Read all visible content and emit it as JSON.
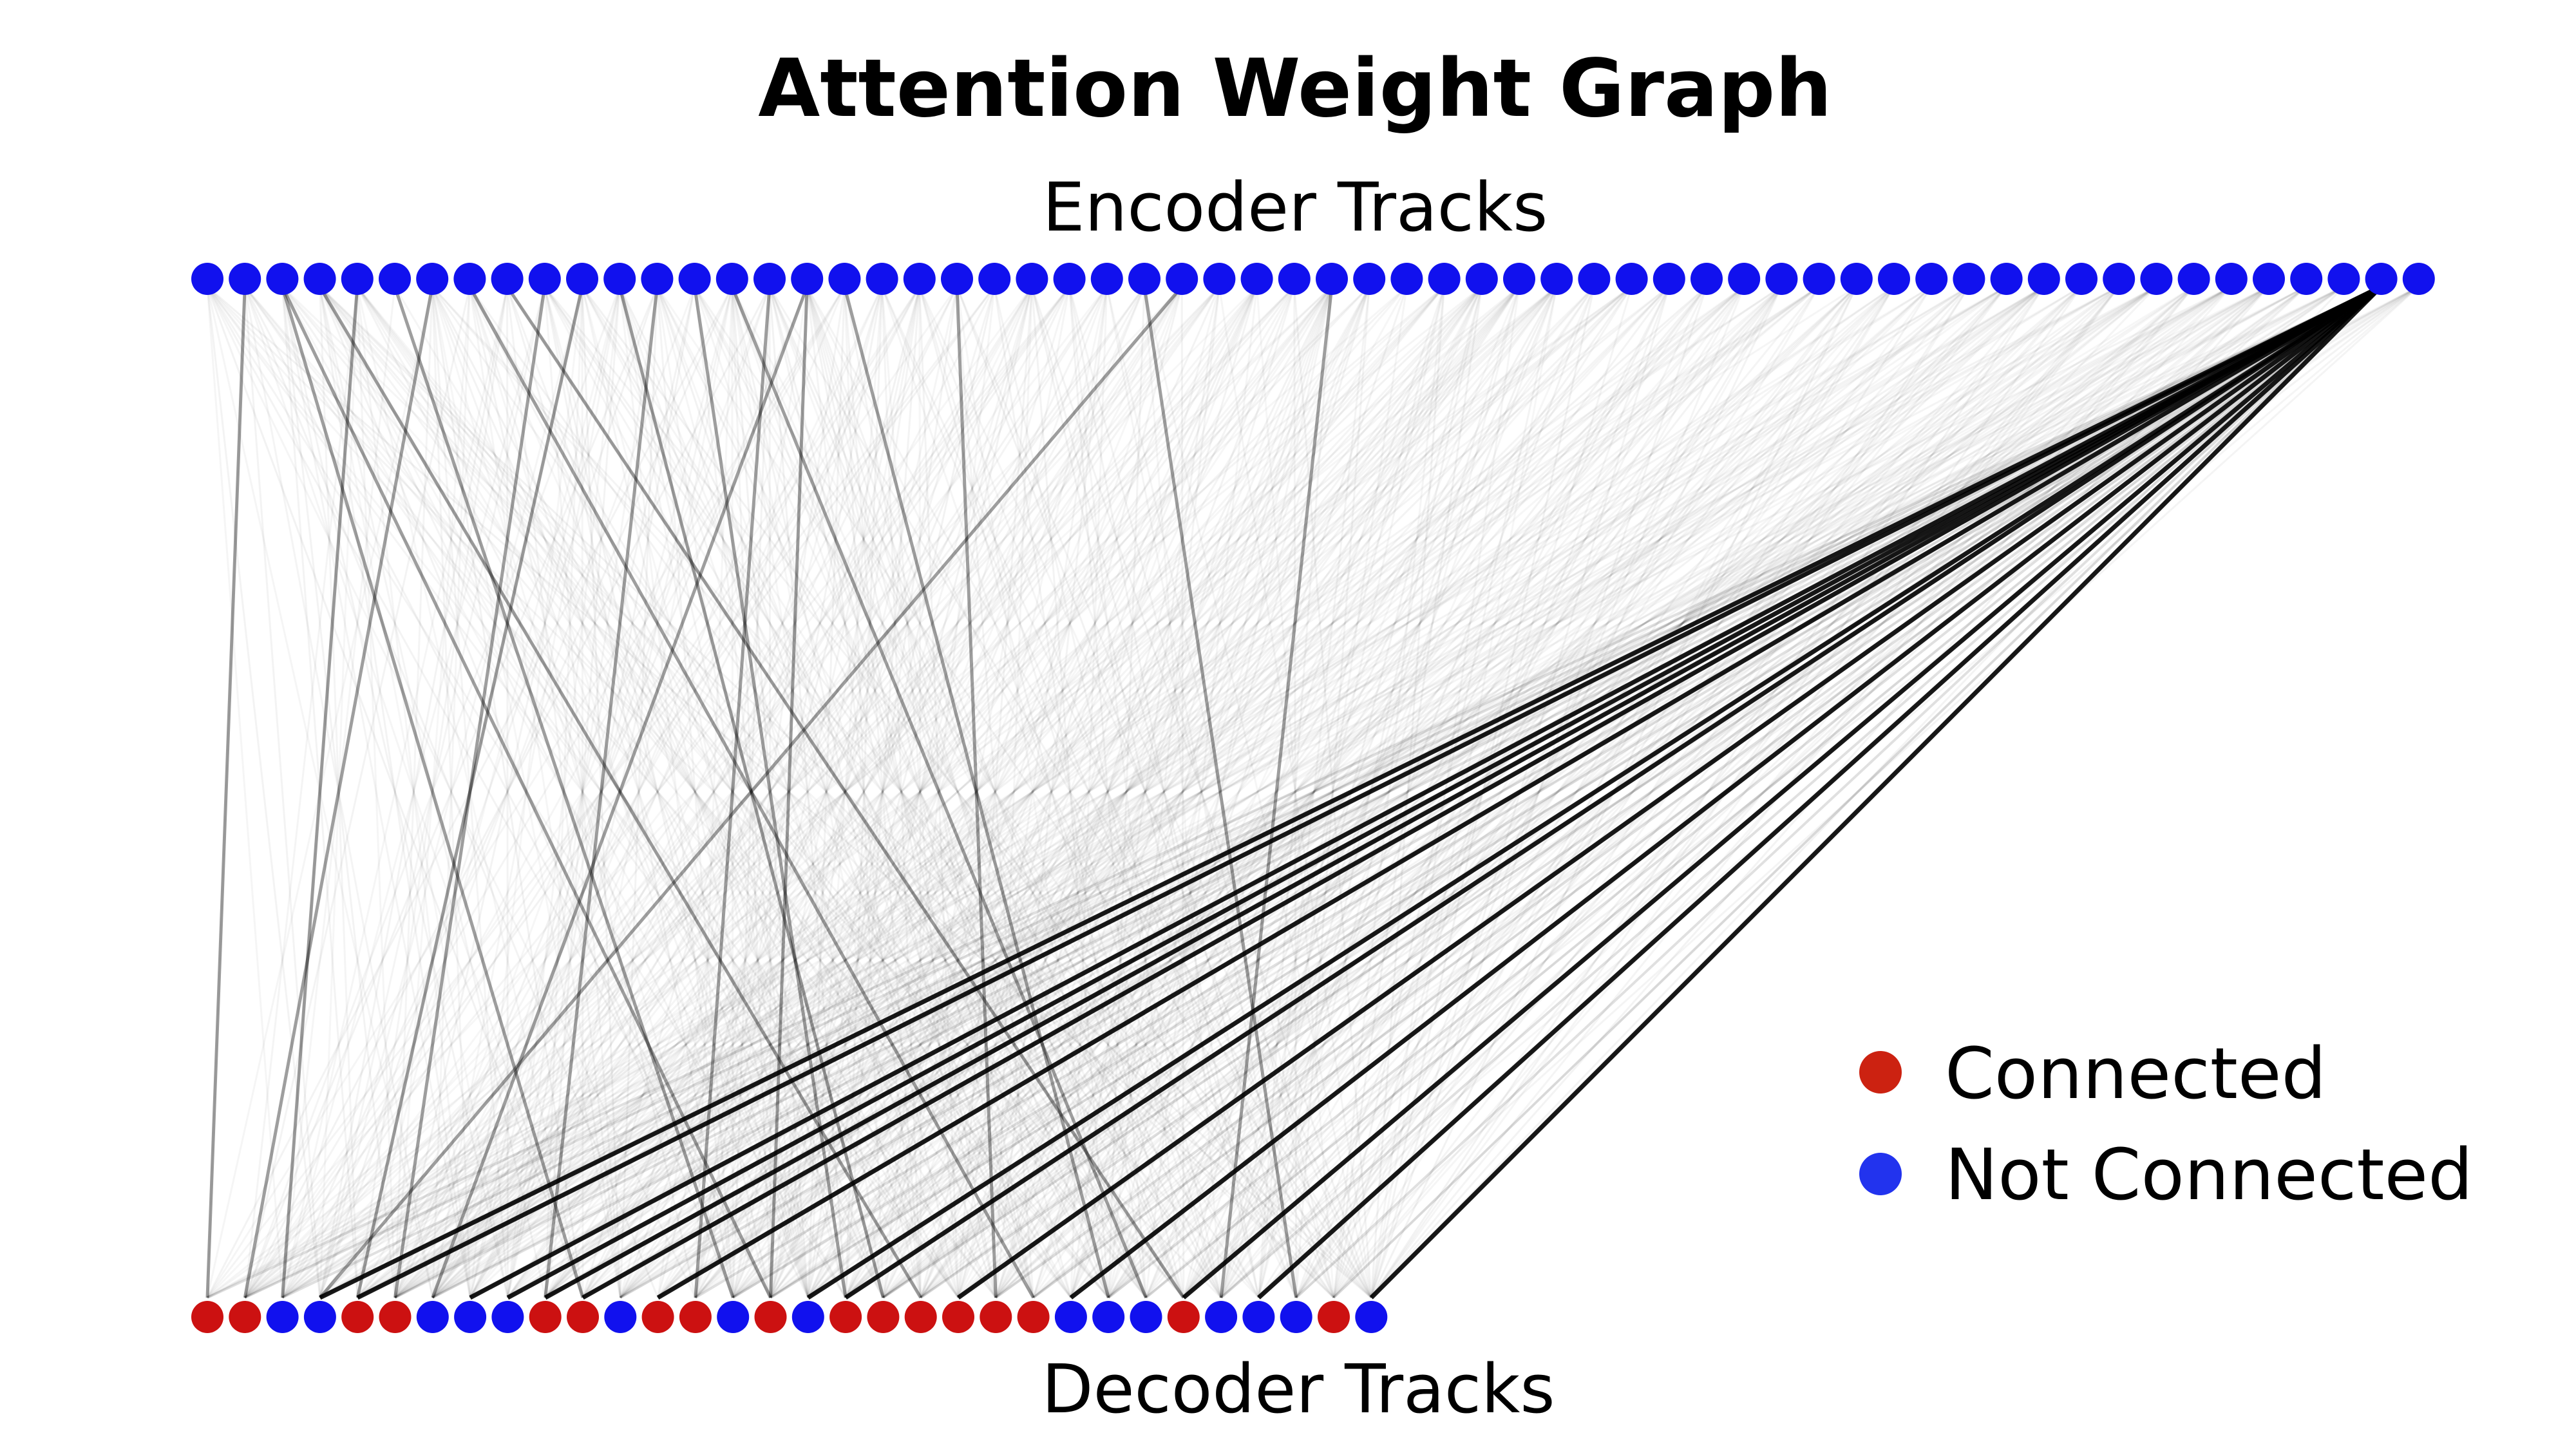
{
  "diagram": {
    "title": "Attention Weight Graph",
    "encoder_label": "Encoder Tracks",
    "decoder_label": "Decoder Tracks",
    "encoder_node_count": 60,
    "decoder_states": [
      "connected",
      "connected",
      "not_connected",
      "not_connected",
      "connected",
      "connected",
      "not_connected",
      "not_connected",
      "not_connected",
      "connected",
      "connected",
      "not_connected",
      "connected",
      "connected",
      "not_connected",
      "connected",
      "not_connected",
      "connected",
      "connected",
      "connected",
      "connected",
      "connected",
      "connected",
      "not_connected",
      "not_connected",
      "not_connected",
      "connected",
      "not_connected",
      "not_connected",
      "not_connected",
      "connected",
      "not_connected"
    ],
    "strong_edges": [
      {
        "enc": 58,
        "dec": 3
      },
      {
        "enc": 58,
        "dec": 4
      },
      {
        "enc": 58,
        "dec": 7
      },
      {
        "enc": 58,
        "dec": 8
      },
      {
        "enc": 58,
        "dec": 9
      },
      {
        "enc": 58,
        "dec": 10
      },
      {
        "enc": 58,
        "dec": 12
      },
      {
        "enc": 58,
        "dec": 16
      },
      {
        "enc": 58,
        "dec": 17
      },
      {
        "enc": 58,
        "dec": 20
      },
      {
        "enc": 58,
        "dec": 23
      },
      {
        "enc": 58,
        "dec": 26
      },
      {
        "enc": 58,
        "dec": 28
      },
      {
        "enc": 58,
        "dec": 31
      }
    ],
    "medium_edges": [
      {
        "enc": 1,
        "dec": 0
      },
      {
        "enc": 2,
        "dec": 10
      },
      {
        "enc": 2,
        "dec": 15
      },
      {
        "enc": 3,
        "dec": 19
      },
      {
        "enc": 4,
        "dec": 2
      },
      {
        "enc": 5,
        "dec": 14
      },
      {
        "enc": 6,
        "dec": 1
      },
      {
        "enc": 7,
        "dec": 22
      },
      {
        "enc": 8,
        "dec": 26
      },
      {
        "enc": 9,
        "dec": 5
      },
      {
        "enc": 10,
        "dec": 4
      },
      {
        "enc": 11,
        "dec": 18
      },
      {
        "enc": 12,
        "dec": 9
      },
      {
        "enc": 13,
        "dec": 17
      },
      {
        "enc": 14,
        "dec": 25
      },
      {
        "enc": 15,
        "dec": 13
      },
      {
        "enc": 16,
        "dec": 15
      },
      {
        "enc": 16,
        "dec": 6
      },
      {
        "enc": 17,
        "dec": 24
      },
      {
        "enc": 20,
        "dec": 21
      },
      {
        "enc": 25,
        "dec": 29
      },
      {
        "enc": 26,
        "dec": 3
      },
      {
        "enc": 30,
        "dec": 27
      }
    ]
  },
  "legend": {
    "items": [
      {
        "label": "Connected",
        "color": "#cc2211"
      },
      {
        "label": "Not Connected",
        "color": "#2233ee"
      }
    ]
  },
  "colors": {
    "encoder_node": "#1111ee",
    "connected_node": "#cc1111",
    "not_connected_node": "#1111ee",
    "edge": "#000000"
  }
}
